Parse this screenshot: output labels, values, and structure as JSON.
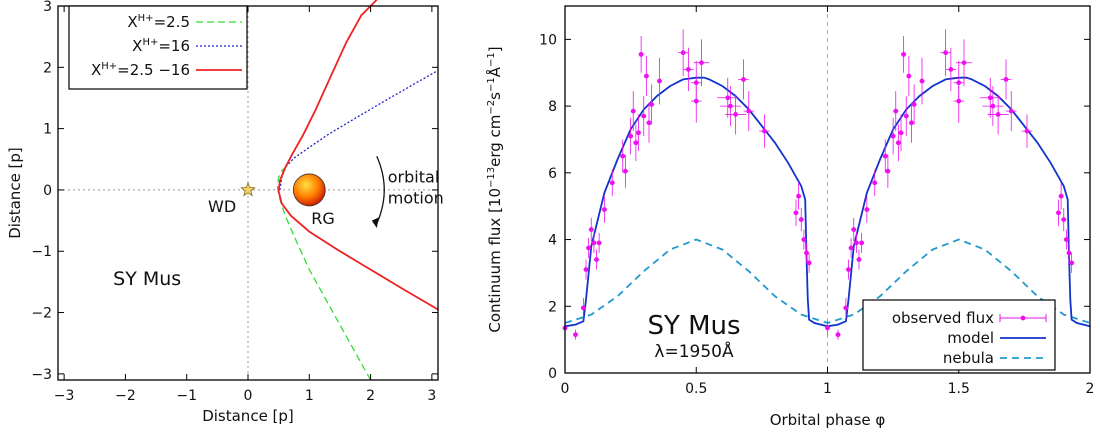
{
  "chart_data": [
    {
      "type": "line",
      "title": "",
      "annotation": "SY Mus",
      "xlabel": "Distance [p]",
      "ylabel": "Distance [p]",
      "xlim": [
        -3.1,
        3.1
      ],
      "ylim": [
        -3.1,
        3.0
      ],
      "xticks": [
        -3,
        -2,
        -1,
        0,
        1,
        2,
        3
      ],
      "yticks": [
        -3,
        -2,
        -1,
        0,
        1,
        2,
        3
      ],
      "xtick_labels": [
        "−3",
        "−2",
        "−1",
        "0",
        "1",
        "2",
        "3"
      ],
      "ytick_labels": [
        "−3",
        "−2",
        "−1",
        "0",
        "1",
        "2",
        "3"
      ],
      "legend": {
        "position": "top-left",
        "entries": [
          {
            "base": "X",
            "sup": "H+",
            "rest": "=2.5"
          },
          {
            "base": "X",
            "sup": "H+",
            "rest": "=16"
          },
          {
            "base": "X",
            "sup": "H+",
            "rest": "=2.5 −16"
          }
        ]
      },
      "series": [
        {
          "style": "dashed",
          "color": "#33dd33",
          "x": [
            2.0,
            1.5,
            1.0,
            0.75,
            0.6,
            0.52,
            0.48,
            0.5,
            0.56,
            0.63
          ],
          "y": [
            -3.1,
            -2.2,
            -1.3,
            -0.75,
            -0.4,
            -0.15,
            0.05,
            0.2,
            0.32,
            0.38
          ]
        },
        {
          "style": "dotted",
          "color": "#2222cc",
          "x": [
            0.52,
            0.55,
            0.62,
            0.75,
            0.95,
            1.3,
            1.8,
            2.4,
            3.1
          ],
          "y": [
            0.0,
            0.2,
            0.38,
            0.52,
            0.66,
            0.9,
            1.2,
            1.55,
            1.95
          ]
        },
        {
          "style": "solid",
          "color": "#ee2222",
          "x": [
            3.1,
            2.5,
            2.0,
            1.5,
            1.0,
            0.7,
            0.55,
            0.5,
            0.52,
            0.6,
            0.72,
            0.9,
            1.1,
            1.35,
            1.6,
            1.85,
            2.1
          ],
          "y": [
            -1.95,
            -1.6,
            -1.3,
            -1.0,
            -0.68,
            -0.42,
            -0.22,
            -0.02,
            0.15,
            0.35,
            0.58,
            0.9,
            1.3,
            1.85,
            2.4,
            2.85,
            3.1
          ]
        }
      ],
      "markers": [
        {
          "label": "WD",
          "x": 0.0,
          "y": 0.0,
          "shape": "star",
          "color": "#f2d36b"
        },
        {
          "label": "RG",
          "x": 1.0,
          "y": 0.0,
          "shape": "sphere",
          "color": "#ff7a00"
        }
      ],
      "motion_label": [
        "orbital",
        "motion"
      ]
    },
    {
      "type": "scatter",
      "title": "SY Mus",
      "subtitle": "λ=1950Å",
      "xlabel": "Orbital phase φ",
      "ylabel": "Continuum flux [10",
      "ylabel_exp1": "−13",
      "ylabel_mid": "erg cm",
      "ylabel_exp2": "−2",
      "ylabel_mid2": "s",
      "ylabel_exp3": "−1",
      "ylabel_mid3": "Å",
      "ylabel_exp4": "−1",
      "ylabel_end": "]",
      "xlim": [
        0,
        2
      ],
      "ylim": [
        0,
        11
      ],
      "xticks": [
        0,
        0.5,
        1,
        1.5,
        2
      ],
      "xtick_labels": [
        "0",
        "0.5",
        "1",
        "1.5",
        "2"
      ],
      "yticks": [
        0,
        2,
        4,
        6,
        8,
        10
      ],
      "ytick_labels": [
        "0",
        "2",
        "4",
        "6",
        "8",
        "10"
      ],
      "legend": {
        "position": "bottom-right",
        "entries": [
          "observed flux",
          "model",
          "nebula"
        ]
      },
      "observed_flux": {
        "phase": [
          0.0,
          0.04,
          0.07,
          0.08,
          0.09,
          0.1,
          0.11,
          0.12,
          0.13,
          0.15,
          0.18,
          0.22,
          0.23,
          0.25,
          0.26,
          0.27,
          0.28,
          0.29,
          0.3,
          0.31,
          0.32,
          0.33,
          0.36,
          0.45,
          0.47,
          0.5,
          0.5,
          0.52,
          0.62,
          0.63,
          0.65,
          0.68,
          0.7,
          0.76,
          0.88,
          0.89,
          0.9,
          0.91,
          0.92,
          0.93
        ],
        "flux": [
          1.35,
          1.15,
          1.95,
          3.1,
          3.75,
          4.3,
          3.9,
          3.4,
          3.9,
          4.9,
          5.7,
          6.5,
          6.05,
          7.1,
          7.85,
          6.9,
          7.2,
          9.55,
          7.7,
          8.9,
          7.5,
          8.05,
          8.75,
          9.6,
          9.1,
          8.7,
          8.15,
          9.3,
          8.25,
          8.0,
          7.75,
          8.8,
          7.85,
          7.25,
          4.8,
          5.3,
          4.6,
          4.0,
          3.6,
          3.3
        ],
        "yerr": [
          0.2,
          0.15,
          0.3,
          0.3,
          0.3,
          0.35,
          0.3,
          0.3,
          0.3,
          0.4,
          0.4,
          0.5,
          0.5,
          0.55,
          0.6,
          0.55,
          0.55,
          0.55,
          0.6,
          0.6,
          0.6,
          0.6,
          0.7,
          0.7,
          0.65,
          0.65,
          0.65,
          0.7,
          0.6,
          0.6,
          0.6,
          0.6,
          0.6,
          0.5,
          0.4,
          0.4,
          0.35,
          0.3,
          0.3,
          0.3
        ],
        "xerr": [
          0.01,
          0.01,
          0.01,
          0.01,
          0.01,
          0.01,
          0.01,
          0.01,
          0.01,
          0.01,
          0.01,
          0.01,
          0.01,
          0.01,
          0.01,
          0.01,
          0.01,
          0.01,
          0.01,
          0.01,
          0.01,
          0.01,
          0.01,
          0.02,
          0.02,
          0.02,
          0.02,
          0.03,
          0.04,
          0.04,
          0.04,
          0.02,
          0.02,
          0.02,
          0.01,
          0.01,
          0.01,
          0.01,
          0.01,
          0.01
        ],
        "repeat_period": 1,
        "color": "#ee11ee"
      },
      "model": {
        "phase": [
          0.0,
          0.04,
          0.07,
          0.08,
          0.1,
          0.15,
          0.2,
          0.25,
          0.3,
          0.35,
          0.4,
          0.45,
          0.5,
          0.53,
          0.55,
          0.6,
          0.65,
          0.7,
          0.75,
          0.8,
          0.85,
          0.9,
          0.915,
          0.92,
          0.925,
          0.93,
          0.95,
          1.0,
          1.04,
          1.07,
          1.08,
          1.1,
          1.15,
          1.2,
          1.25,
          1.3,
          1.35,
          1.4,
          1.45,
          1.5,
          1.53,
          1.55,
          1.6,
          1.65,
          1.7,
          1.75,
          1.8,
          1.85,
          1.9,
          1.915,
          1.92,
          1.925,
          1.93,
          1.95,
          2.0
        ],
        "flux": [
          1.4,
          1.45,
          1.55,
          2.2,
          3.8,
          5.4,
          6.4,
          7.3,
          7.9,
          8.3,
          8.6,
          8.8,
          8.85,
          8.85,
          8.8,
          8.6,
          8.3,
          7.9,
          7.4,
          6.9,
          6.3,
          5.6,
          5.2,
          3.5,
          2.2,
          1.6,
          1.5,
          1.4,
          1.45,
          1.55,
          2.2,
          3.8,
          5.4,
          6.4,
          7.3,
          7.9,
          8.3,
          8.6,
          8.8,
          8.85,
          8.85,
          8.8,
          8.6,
          8.3,
          7.9,
          7.4,
          6.9,
          6.3,
          5.6,
          5.2,
          3.5,
          2.2,
          1.6,
          1.5,
          1.4
        ],
        "color": "#1133cc"
      },
      "nebula": {
        "phase": [
          0.0,
          0.1,
          0.2,
          0.3,
          0.4,
          0.5,
          0.6,
          0.7,
          0.8,
          0.9,
          1.0,
          1.1,
          1.2,
          1.3,
          1.4,
          1.5,
          1.6,
          1.7,
          1.8,
          1.9,
          2.0
        ],
        "flux": [
          1.5,
          1.75,
          2.3,
          3.05,
          3.7,
          4.0,
          3.7,
          3.05,
          2.3,
          1.75,
          1.5,
          1.75,
          2.3,
          3.05,
          3.7,
          4.0,
          3.7,
          3.05,
          2.3,
          1.75,
          1.5
        ],
        "color": "#2299cc"
      },
      "vline": 1
    }
  ]
}
